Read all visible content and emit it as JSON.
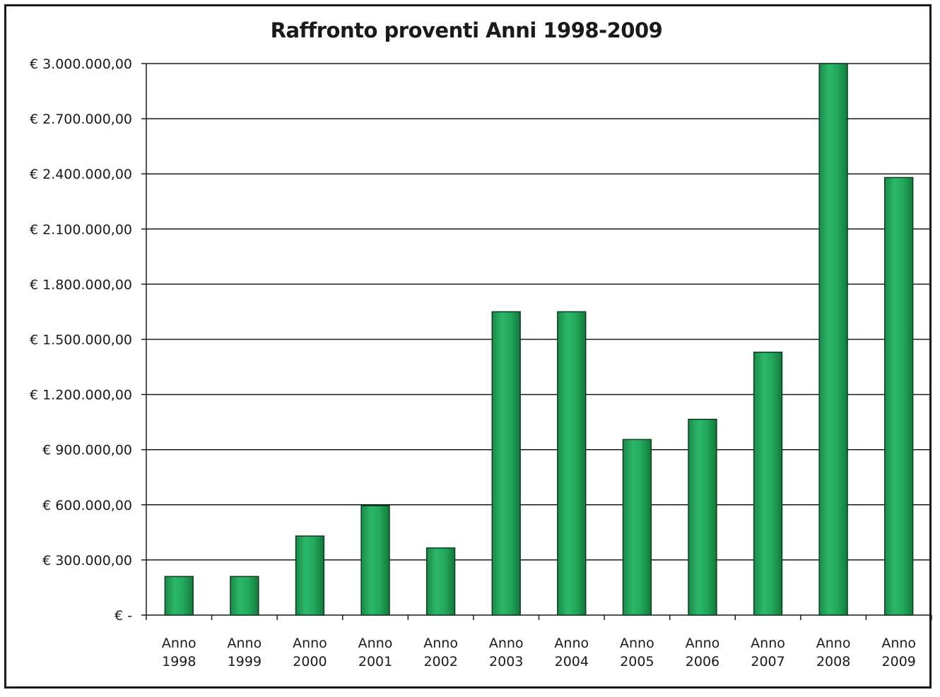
{
  "chart_data": {
    "type": "bar",
    "title": "Raffronto proventi Anni 1998-2009",
    "xlabel": "",
    "ylabel": "",
    "ylim": [
      0,
      3000000
    ],
    "grid": true,
    "bar_color": "#1fa25a",
    "categories": [
      [
        "Anno",
        "1998"
      ],
      [
        "Anno",
        "1999"
      ],
      [
        "Anno",
        "2000"
      ],
      [
        "Anno",
        "2001"
      ],
      [
        "Anno",
        "2002"
      ],
      [
        "Anno",
        "2003"
      ],
      [
        "Anno",
        "2004"
      ],
      [
        "Anno",
        "2005"
      ],
      [
        "Anno",
        "2006"
      ],
      [
        "Anno",
        "2007"
      ],
      [
        "Anno",
        "2008"
      ],
      [
        "Anno",
        "2009"
      ]
    ],
    "values": [
      210000,
      210000,
      430000,
      595000,
      365000,
      1650000,
      1650000,
      955000,
      1065000,
      1430000,
      3000000,
      2380000
    ],
    "yticks": [
      {
        "value": 0,
        "label": "€ -"
      },
      {
        "value": 300000,
        "label": "€ 300.000,00"
      },
      {
        "value": 600000,
        "label": "€ 600.000,00"
      },
      {
        "value": 900000,
        "label": "€ 900.000,00"
      },
      {
        "value": 1200000,
        "label": "€ 1.200.000,00"
      },
      {
        "value": 1500000,
        "label": "€ 1.500.000,00"
      },
      {
        "value": 1800000,
        "label": "€ 1.800.000,00"
      },
      {
        "value": 2100000,
        "label": "€ 2.100.000,00"
      },
      {
        "value": 2400000,
        "label": "€ 2.400.000,00"
      },
      {
        "value": 2700000,
        "label": "€ 2.700.000,00"
      },
      {
        "value": 3000000,
        "label": "€ 3.000.000,00"
      }
    ]
  }
}
